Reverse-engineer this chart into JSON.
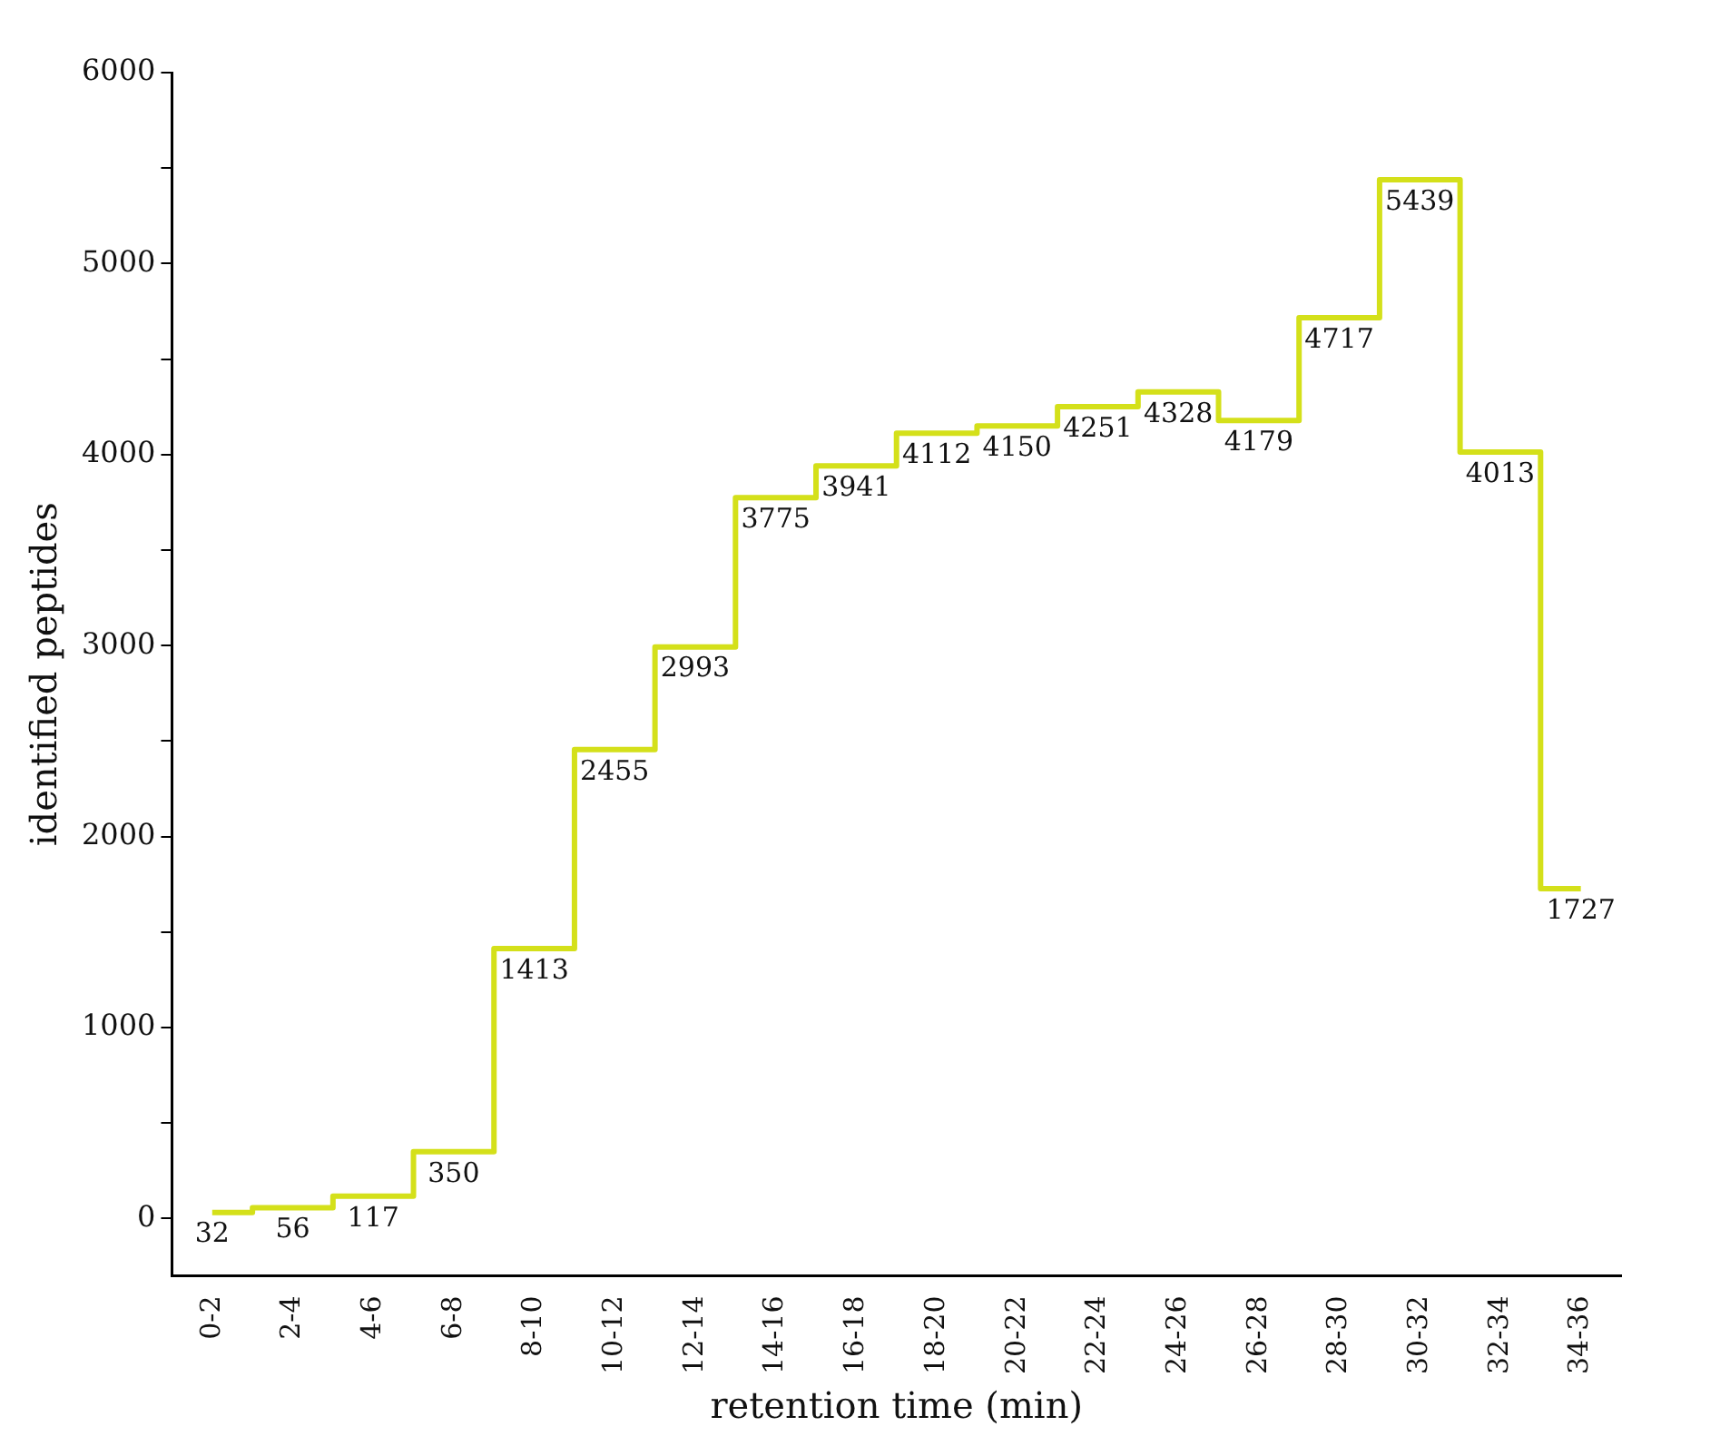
{
  "chart_data": {
    "type": "step",
    "xlabel": "retention time (min)",
    "ylabel": "identified peptides",
    "categories": [
      "0-2",
      "2-4",
      "4-6",
      "6-8",
      "8-10",
      "10-12",
      "12-14",
      "14-16",
      "16-18",
      "18-20",
      "20-22",
      "22-24",
      "24-26",
      "26-28",
      "28-30",
      "30-32",
      "32-34",
      "34-36"
    ],
    "series": [
      {
        "color": "#d4e01a",
        "values": [
          32,
          56,
          117,
          350,
          1413,
          2455,
          2993,
          3775,
          3941,
          4112,
          4150,
          4251,
          4328,
          4179,
          4717,
          5439,
          4013,
          1727
        ]
      }
    ],
    "ylim": [
      -300,
      6000
    ],
    "yticks": [
      0,
      {
        "value": 500,
        "label": null
      },
      1000,
      {
        "value": 1500,
        "label": null
      },
      2000,
      {
        "value": 2500,
        "label": null
      },
      3000,
      {
        "value": 3500,
        "label": null
      },
      4000,
      {
        "value": 4500,
        "label": null
      },
      5000,
      {
        "value": 5500,
        "label": null
      },
      6000
    ],
    "data_labels": true,
    "grid": false,
    "legend": false,
    "marker": "none",
    "line_style": "solid"
  }
}
